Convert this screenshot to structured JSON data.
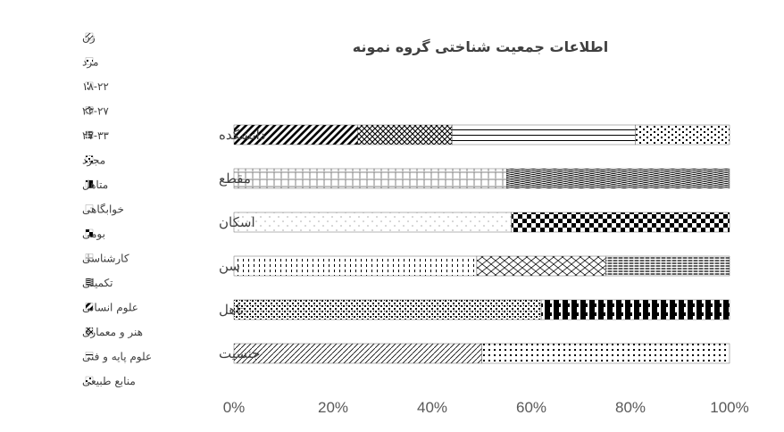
{
  "chart_data": {
    "type": "bar",
    "orientation": "horizontal",
    "stacked": "percent",
    "title": "اطلاعات جمعیت شناختی گروه نمونه",
    "xlim": [
      0,
      100
    ],
    "x_ticks": [
      "0%",
      "20%",
      "40%",
      "60%",
      "80%",
      "100%"
    ],
    "grid": false,
    "legend_position": "left",
    "categories": [
      "دانشکده",
      "مقطع",
      "اسکان",
      "سن",
      "تاهل",
      "جنسیت"
    ],
    "legend": [
      "زن",
      "مرد",
      "۱۸-۲۲",
      "۲۳-۲۷",
      "۲۷-۳۳",
      "مجرد",
      "متاهل",
      "خوابگاهی",
      "بومی",
      "کارشناسی",
      "تکمیلی",
      "علوم انسانی",
      "هنر و معماری",
      "علوم پایه و فنی",
      "منابع طبیعی"
    ],
    "series": [
      {
        "name": "زن",
        "values": [
          0,
          0,
          0,
          0,
          0,
          50
        ]
      },
      {
        "name": "مرد",
        "values": [
          0,
          0,
          0,
          0,
          0,
          50
        ]
      },
      {
        "name": "۱۸-۲۲",
        "values": [
          0,
          0,
          0,
          49,
          0,
          0
        ]
      },
      {
        "name": "۲۳-۲۷",
        "values": [
          0,
          0,
          0,
          26,
          0,
          0
        ]
      },
      {
        "name": "۲۷-۳۳",
        "values": [
          0,
          0,
          0,
          25,
          0,
          0
        ]
      },
      {
        "name": "مجرد",
        "values": [
          0,
          0,
          0,
          0,
          62,
          0
        ]
      },
      {
        "name": "متاهل",
        "values": [
          0,
          0,
          0,
          0,
          38,
          0
        ]
      },
      {
        "name": "خوابگاهی",
        "values": [
          0,
          0,
          56,
          0,
          0,
          0
        ]
      },
      {
        "name": "بومی",
        "values": [
          0,
          0,
          44,
          0,
          0,
          0
        ]
      },
      {
        "name": "کارشناسی",
        "values": [
          0,
          55,
          0,
          0,
          0,
          0
        ]
      },
      {
        "name": "تکمیلی",
        "values": [
          0,
          45,
          0,
          0,
          0,
          0
        ]
      },
      {
        "name": "علوم انسانی",
        "values": [
          25,
          0,
          0,
          0,
          0,
          0
        ]
      },
      {
        "name": "هنر و معماری",
        "values": [
          19,
          0,
          0,
          0,
          0,
          0
        ]
      },
      {
        "name": "علوم پایه و فنی",
        "values": [
          37,
          0,
          0,
          0,
          0,
          0
        ]
      },
      {
        "name": "منابع طبیعی",
        "values": [
          19,
          0,
          0,
          0,
          0,
          0
        ]
      }
    ]
  }
}
